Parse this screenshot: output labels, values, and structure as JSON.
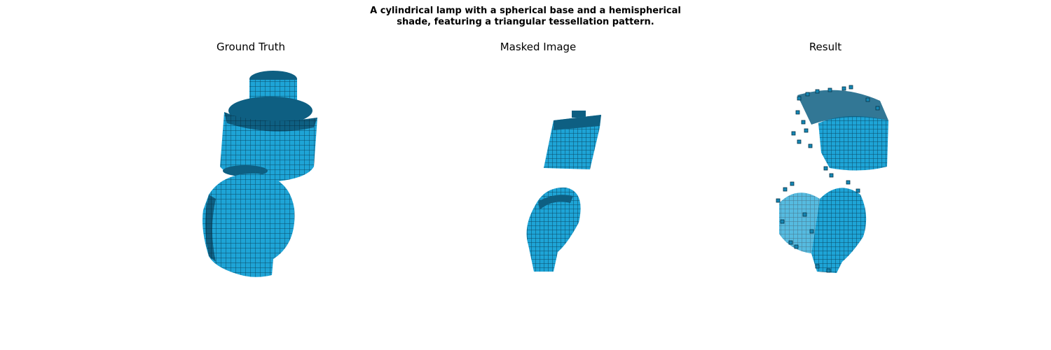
{
  "figure": {
    "caption_line1": "A cylindrical lamp with a spherical base and a hemispherical",
    "caption_line2": "shade, featuring a triangular tessellation pattern."
  },
  "panels": [
    {
      "title": "Ground Truth"
    },
    {
      "title": "Masked Image"
    },
    {
      "title": "Result"
    }
  ],
  "colors": {
    "voxel_face": "#1ea4d6",
    "voxel_mid": "#1587b4",
    "voxel_dark": "#0b4a66",
    "voxel_edge": "#073246"
  }
}
